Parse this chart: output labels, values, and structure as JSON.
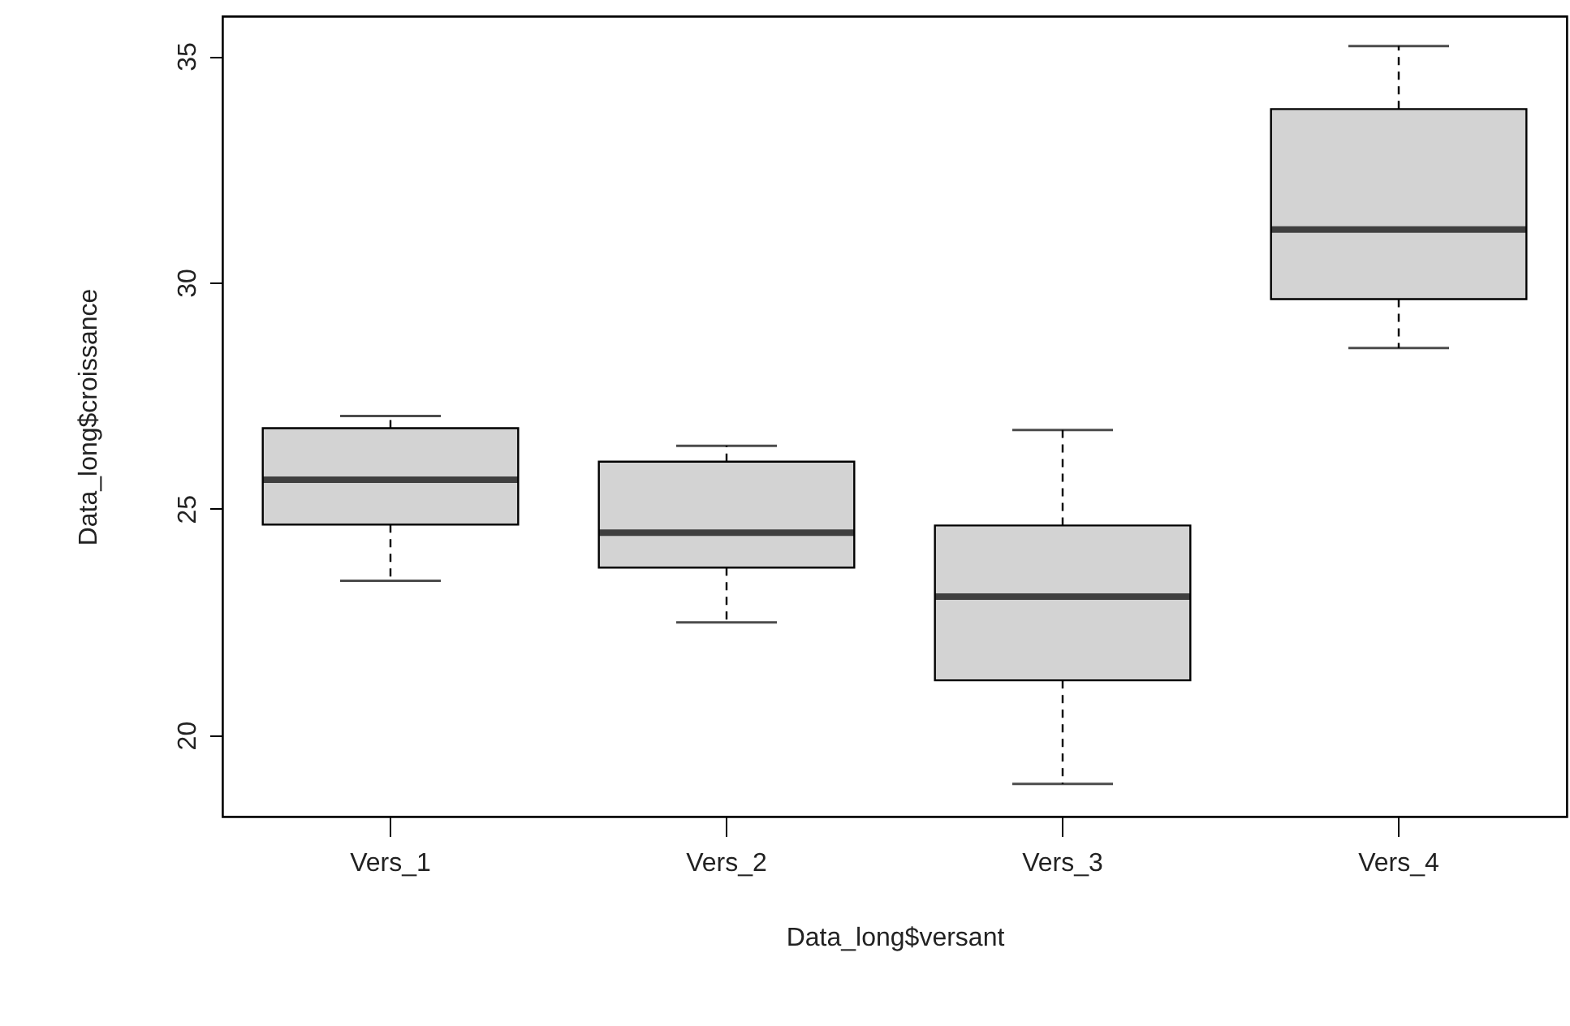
{
  "chart_data": {
    "type": "box",
    "xlabel": "Data_long$versant",
    "ylabel": "Data_long$croissance",
    "categories": [
      "Vers_1",
      "Vers_2",
      "Vers_3",
      "Vers_4"
    ],
    "ylim": [
      18.2,
      35.88
    ],
    "yticks": [
      20,
      25,
      30,
      35
    ],
    "series": [
      {
        "color": "#d3d3d3",
        "boxes": [
          {
            "low": 23.41,
            "q1": 24.65,
            "median": 25.64,
            "q3": 26.78,
            "high": 27.05
          },
          {
            "low": 22.49,
            "q1": 23.7,
            "median": 24.47,
            "q3": 26.04,
            "high": 26.39
          },
          {
            "low": 18.92,
            "q1": 21.21,
            "median": 23.06,
            "q3": 24.63,
            "high": 26.74
          },
          {
            "low": 28.55,
            "q1": 29.63,
            "median": 31.17,
            "q3": 33.83,
            "high": 35.22
          }
        ]
      }
    ]
  }
}
